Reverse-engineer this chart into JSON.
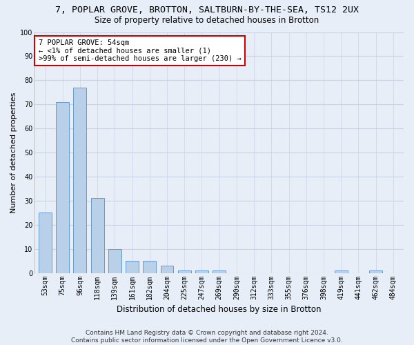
{
  "title_line1": "7, POPLAR GROVE, BROTTON, SALTBURN-BY-THE-SEA, TS12 2UX",
  "title_line2": "Size of property relative to detached houses in Brotton",
  "xlabel": "Distribution of detached houses by size in Brotton",
  "ylabel": "Number of detached properties",
  "categories": [
    "53sqm",
    "75sqm",
    "96sqm",
    "118sqm",
    "139sqm",
    "161sqm",
    "182sqm",
    "204sqm",
    "225sqm",
    "247sqm",
    "269sqm",
    "290sqm",
    "312sqm",
    "333sqm",
    "355sqm",
    "376sqm",
    "398sqm",
    "419sqm",
    "441sqm",
    "462sqm",
    "484sqm"
  ],
  "values": [
    25,
    71,
    77,
    31,
    10,
    5,
    5,
    3,
    1,
    1,
    1,
    0,
    0,
    0,
    0,
    0,
    0,
    1,
    0,
    1,
    0
  ],
  "bar_color": "#b8d0e8",
  "bar_edge_color": "#6699cc",
  "annotation_text": "7 POPLAR GROVE: 54sqm\n← <1% of detached houses are smaller (1)\n>99% of semi-detached houses are larger (230) →",
  "annotation_box_color": "#ffffff",
  "annotation_box_edge_color": "#cc0000",
  "ylim": [
    0,
    100
  ],
  "yticks": [
    0,
    10,
    20,
    30,
    40,
    50,
    60,
    70,
    80,
    90,
    100
  ],
  "grid_color": "#c8d4e4",
  "background_color": "#e8eef8",
  "footer_text": "Contains HM Land Registry data © Crown copyright and database right 2024.\nContains public sector information licensed under the Open Government Licence v3.0.",
  "title_fontsize": 9.5,
  "subtitle_fontsize": 8.5,
  "axis_label_fontsize": 8,
  "tick_fontsize": 7,
  "annotation_fontsize": 7.5,
  "footer_fontsize": 6.5
}
